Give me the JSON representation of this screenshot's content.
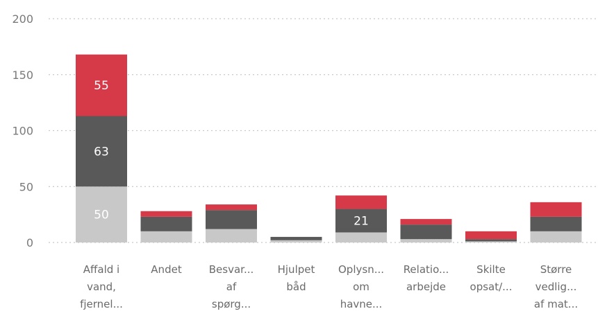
{
  "chart_data": {
    "type": "bar",
    "stacked": true,
    "categories": [
      [
        "Affald i",
        "vand,",
        "fjernel..."
      ],
      [
        "Andet"
      ],
      [
        "Besvar...",
        "af",
        "spørg..."
      ],
      [
        "Hjulpet",
        "båd"
      ],
      [
        "Oplysn...",
        "om",
        "havne..."
      ],
      [
        "Relatio...",
        "arbejde"
      ],
      [
        "Skilte",
        "opsat/..."
      ],
      [
        "Større",
        "vedlig...",
        "af mat..."
      ]
    ],
    "series": [
      {
        "color": "#c8c8c8",
        "values": [
          50,
          10,
          12,
          2,
          9,
          3,
          1,
          10
        ]
      },
      {
        "color": "#595959",
        "values": [
          63,
          13,
          17,
          3,
          21,
          13,
          2,
          13
        ]
      },
      {
        "color": "#d63a48",
        "values": [
          55,
          5,
          5,
          0,
          12,
          5,
          7,
          13
        ]
      }
    ],
    "data_labels": [
      {
        "category": 0,
        "series": 0,
        "text": "50"
      },
      {
        "category": 0,
        "series": 1,
        "text": "63"
      },
      {
        "category": 0,
        "series": 2,
        "text": "55"
      },
      {
        "category": 4,
        "series": 1,
        "text": "21"
      }
    ],
    "yticks": [
      0,
      50,
      100,
      150,
      200
    ],
    "ylim": [
      0,
      200
    ],
    "grid": true,
    "legend": "none"
  }
}
